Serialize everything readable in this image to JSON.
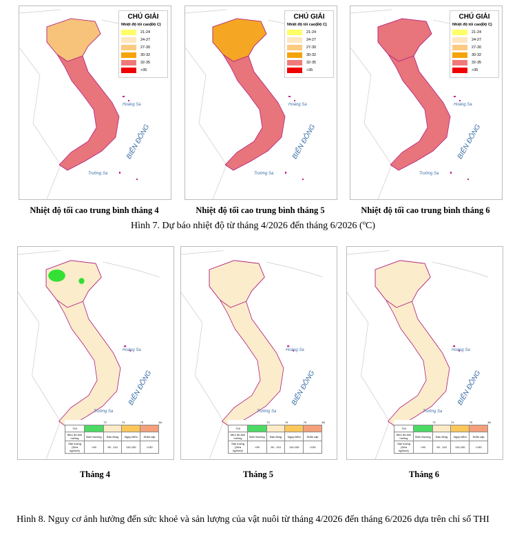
{
  "figure7": {
    "maps": [
      {
        "caption": "Nhiệt độ tối cao trung bình tháng 4",
        "fill": "#e8747c",
        "north": "#f7c27a"
      },
      {
        "caption": "Nhiệt độ tối cao trung bình tháng 5",
        "fill": "#e8747c",
        "north": "#f5a623"
      },
      {
        "caption": "Nhiệt độ tối cao trung bình tháng 6",
        "fill": "#e8747c",
        "north": "#e8747c"
      }
    ],
    "legend": {
      "title": "CHÚ GIẢI",
      "subtitle": "Nhiệt độ tối cao(Độ C)",
      "items": [
        {
          "label": "21-24",
          "color": "#ffff66"
        },
        {
          "label": "24-27",
          "color": "#fde6c0"
        },
        {
          "label": "27-30",
          "color": "#fcca80"
        },
        {
          "label": "30-32",
          "color": "#f5a30a"
        },
        {
          "label": "32-35",
          "color": "#f07a7a"
        },
        {
          "label": ">35",
          "color": "#f00000"
        }
      ]
    },
    "title": "Hình 7. Dự báo nhiệt độ từ tháng 4/2026 đến tháng 6/2026 (ºC)"
  },
  "map_labels": {
    "sea": "BIỂN ĐÔNG",
    "hoang_sa": "Hoàng Sa",
    "truong_sa": "Trường Sa"
  },
  "figure8": {
    "maps": [
      {
        "caption": "Tháng 4"
      },
      {
        "caption": "Tháng 5"
      },
      {
        "caption": "Tháng 6"
      }
    ],
    "thi_table": {
      "thresholds": [
        "72",
        "74",
        "79",
        "84"
      ],
      "header": "THI",
      "colors": [
        "#4cd964",
        "#fdebc8",
        "#fcc75a",
        "#f4a07a"
      ],
      "row1_label": "Mức độ ảnh hưởng",
      "row1": [
        "Bình thường",
        "Báo động",
        "Nguy hiểm",
        "Khẩn cấp"
      ],
      "row2_label": "Sản lượng (Sữa kg/bò/d)",
      "row2": [
        "<90",
        "90 - 110",
        "110-130",
        ">130"
      ]
    },
    "title": "Hình 8. Nguy cơ ảnh hưởng đến sức khoẻ và sản lượng của vật nuôi từ tháng 4/2026 đến tháng 6/2026 dựa trên chỉ số THI"
  }
}
